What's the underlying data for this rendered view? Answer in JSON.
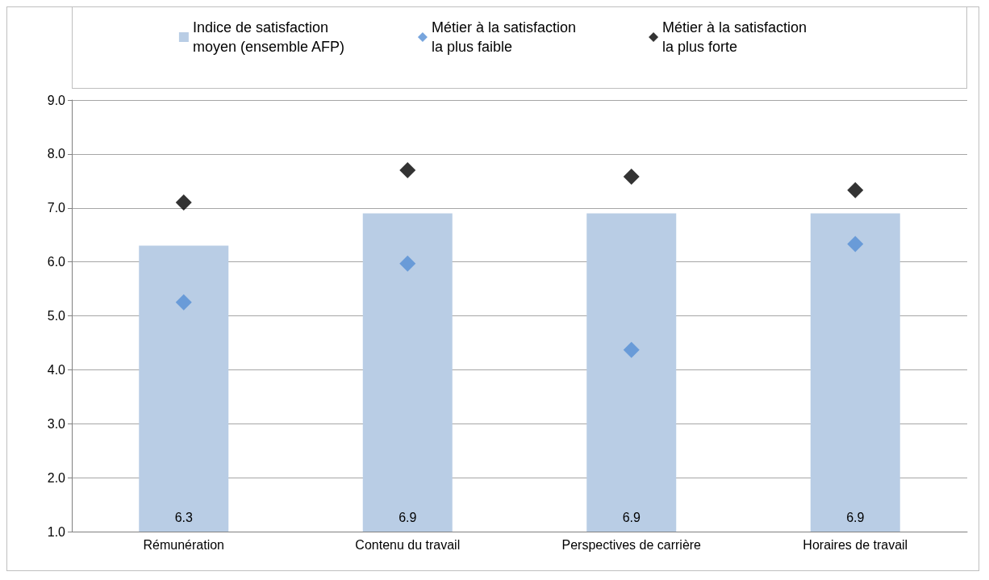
{
  "chart_data": {
    "type": "bar",
    "categories": [
      "Rémunération",
      "Contenu du travail",
      "Perspectives de carrière",
      "Horaires de travail"
    ],
    "series": [
      {
        "type": "bar",
        "name": "Indice de satisfaction\nmoyen (ensemble AFP)",
        "color": "#b9cde5",
        "values": [
          6.3,
          6.9,
          6.9,
          6.9
        ],
        "data_labels": true
      },
      {
        "type": "scatter",
        "name": "Métier à la satisfaction\nla plus faible",
        "color": "#558ed5",
        "values": [
          5.25,
          5.97,
          4.37,
          6.33
        ],
        "marker": "diamond"
      },
      {
        "type": "scatter",
        "name": "Métier à la satisfaction\nla plus forte",
        "color": "#000000",
        "values": [
          7.1,
          7.7,
          7.58,
          7.33
        ],
        "marker": "diamond"
      }
    ],
    "ylim": [
      1,
      9
    ],
    "yticks": [
      {
        "value": 1,
        "label": "1.0"
      },
      {
        "value": 2,
        "label": "2.0"
      },
      {
        "value": 3,
        "label": "3.0"
      },
      {
        "value": 4,
        "label": "4.0"
      },
      {
        "value": 5,
        "label": "5.0"
      },
      {
        "value": 6,
        "label": "6.0"
      },
      {
        "value": 7,
        "label": "7.0"
      },
      {
        "value": 8,
        "label": "8.0"
      },
      {
        "value": 9,
        "label": "9.0"
      }
    ],
    "grid": "y",
    "legend": "top"
  }
}
